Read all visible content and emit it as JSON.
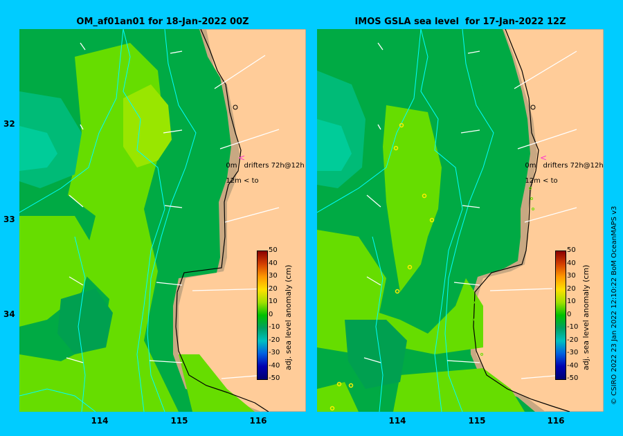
{
  "panels": [
    {
      "title": "OM_af01an01 for 18-Jan-2022 00Z",
      "note_line1": "0m",
      "note_line1b": "drifters 72h@12h",
      "note_line2": "12m",
      "note_line2b": "to"
    },
    {
      "title": "IMOS GSLA sea level  for 17-Jan-2022 12Z",
      "note_line1": "0m",
      "note_line1b": "drifters 72h@12h",
      "note_line2": "12m",
      "note_line2b": "to"
    }
  ],
  "axes": {
    "y_labels": [
      "32",
      "33",
      "34"
    ],
    "x_labels": [
      "114",
      "115",
      "116"
    ]
  },
  "colorbar": {
    "title": "adj. sea level anomaly (cm)",
    "ticks": [
      "50",
      "40",
      "30",
      "20",
      "10",
      "0",
      "-10",
      "-20",
      "-30",
      "-40",
      "-50"
    ],
    "colors": [
      "#8b0000",
      "#d44000",
      "#ff9900",
      "#ffe000",
      "#a0e000",
      "#00c000",
      "#00a060",
      "#00c0c0",
      "#0060e0",
      "#0000b0",
      "#000070"
    ]
  },
  "credit": "© CSIRO 2022    23 Jan 2022 12:10:22 BoM OceanMAPS v3",
  "colors": {
    "background": "#00ccff",
    "land": "#ffcc99",
    "coast": "#c8a882",
    "sea_mid": "#00aa44",
    "sea_light": "#66dd00",
    "sea_teal": "#00bb88"
  }
}
